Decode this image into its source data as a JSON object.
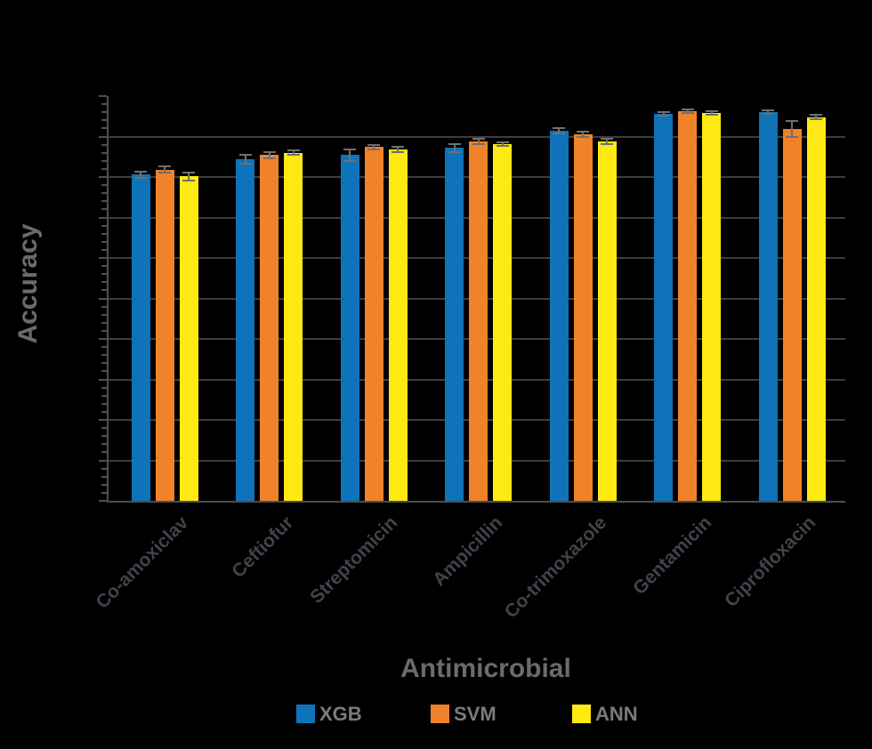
{
  "figure": {
    "background": "#000000"
  },
  "chart_data": {
    "type": "bar",
    "title": "",
    "xlabel": "Antimicrobial",
    "ylabel": "Accuracy",
    "categories": [
      "Co-amoxiclav",
      "Ceftiofur",
      "Streptomicin",
      "Ampicillin",
      "Co-trimoxazole",
      "Gentamicin",
      "Ciprofloxacin"
    ],
    "series": [
      {
        "name": "XGB",
        "color": "#0E73B9",
        "values": [
          0.903,
          0.922,
          0.927,
          0.936,
          0.957,
          0.978,
          0.98
        ],
        "errors": [
          0.004,
          0.005,
          0.007,
          0.005,
          0.003,
          0.002,
          0.002
        ]
      },
      {
        "name": "SVM",
        "color": "#F0822A",
        "values": [
          0.909,
          0.927,
          0.937,
          0.944,
          0.953,
          0.981,
          0.959
        ],
        "errors": [
          0.004,
          0.004,
          0.003,
          0.003,
          0.003,
          0.002,
          0.01
        ]
      },
      {
        "name": "ANN",
        "color": "#FEE912",
        "values": [
          0.901,
          0.93,
          0.934,
          0.941,
          0.944,
          0.979,
          0.974
        ],
        "errors": [
          0.005,
          0.003,
          0.003,
          0.002,
          0.003,
          0.002,
          0.003
        ]
      }
    ],
    "ylim": [
      0.5,
      1.0
    ],
    "y_major_step": 0.05,
    "y_minor_step": 0.01,
    "y_tick_labels_visible": false,
    "grid": true,
    "legend_position": "bottom",
    "error_bar_color": "#707070"
  },
  "colors": {
    "gridline": "#3d3d3d",
    "spine": "#4f4f4f",
    "tick": "#4f4f4f",
    "category_label": "#3f434a",
    "axis_title": "#6b6b6b",
    "legend_text": "#7b7b7b"
  }
}
